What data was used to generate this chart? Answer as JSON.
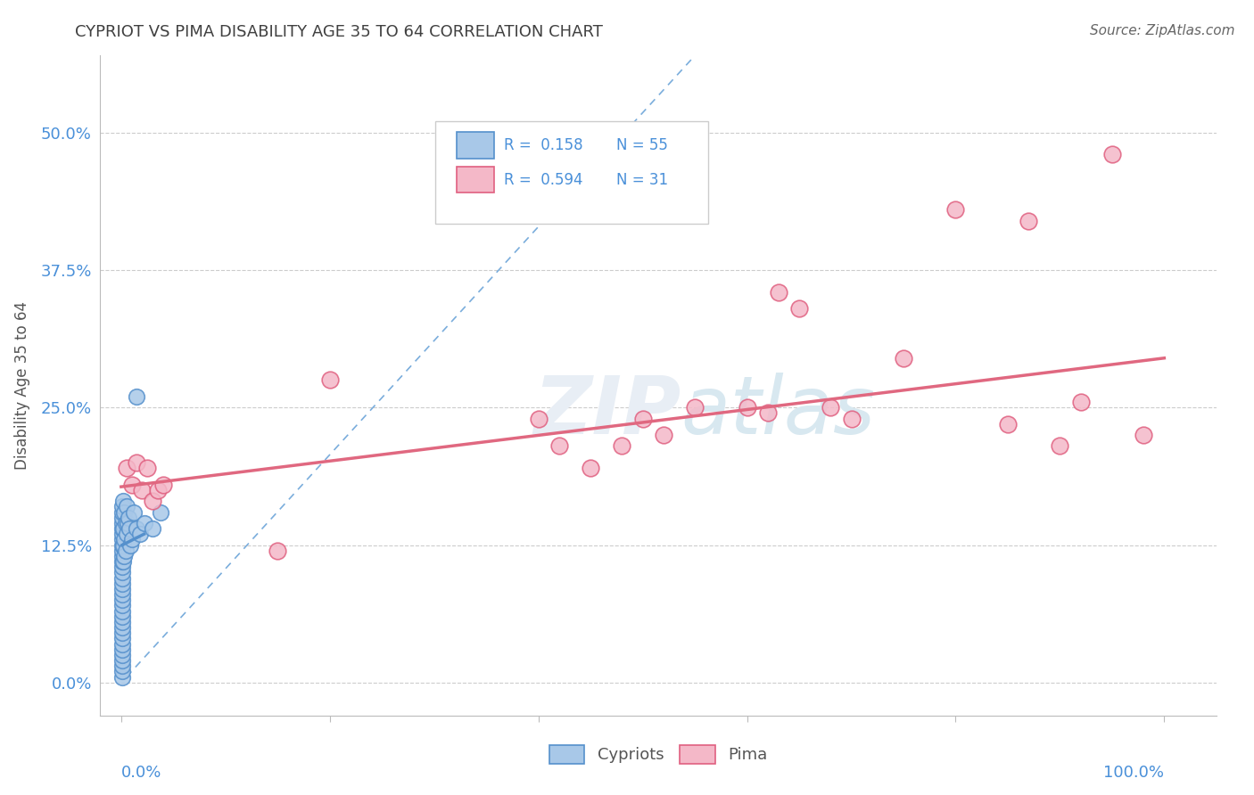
{
  "title": "CYPRIOT VS PIMA DISABILITY AGE 35 TO 64 CORRELATION CHART",
  "source": "Source: ZipAtlas.com",
  "ylabel": "Disability Age 35 to 64",
  "ytick_values": [
    0.0,
    0.125,
    0.25,
    0.375,
    0.5
  ],
  "ytick_labels": [
    "0.0%",
    "12.5%",
    "25.0%",
    "37.5%",
    "50.0%"
  ],
  "xlim": [
    -0.02,
    1.05
  ],
  "ylim": [
    -0.03,
    0.57
  ],
  "cypriot_R": 0.158,
  "cypriot_N": 55,
  "pima_R": 0.594,
  "pima_N": 31,
  "legend_labels": [
    "Cypriots",
    "Pima"
  ],
  "cypriot_color": "#a8c8e8",
  "pima_color": "#f4b8c8",
  "cypriot_edge_color": "#5590cc",
  "pima_edge_color": "#e06080",
  "cypriot_line_color": "#7aaddc",
  "pima_line_color": "#e06880",
  "grid_color": "#cccccc",
  "title_color": "#404040",
  "axis_label_color": "#4a90d9",
  "ylabel_color": "#555555",
  "watermark_color": "#e8eef5",
  "cypriot_x": [
    0.001,
    0.001,
    0.001,
    0.001,
    0.001,
    0.001,
    0.001,
    0.001,
    0.001,
    0.001,
    0.001,
    0.001,
    0.001,
    0.001,
    0.001,
    0.001,
    0.001,
    0.001,
    0.001,
    0.001,
    0.001,
    0.001,
    0.001,
    0.001,
    0.001,
    0.001,
    0.001,
    0.001,
    0.001,
    0.001,
    0.001,
    0.001,
    0.002,
    0.002,
    0.002,
    0.002,
    0.003,
    0.003,
    0.003,
    0.004,
    0.004,
    0.005,
    0.005,
    0.006,
    0.007,
    0.008,
    0.009,
    0.01,
    0.012,
    0.015,
    0.018,
    0.022,
    0.03,
    0.038,
    0.015
  ],
  "cypriot_y": [
    0.005,
    0.01,
    0.015,
    0.02,
    0.025,
    0.03,
    0.035,
    0.04,
    0.045,
    0.05,
    0.055,
    0.06,
    0.065,
    0.07,
    0.075,
    0.08,
    0.085,
    0.09,
    0.095,
    0.1,
    0.105,
    0.11,
    0.115,
    0.12,
    0.125,
    0.13,
    0.135,
    0.14,
    0.145,
    0.15,
    0.155,
    0.16,
    0.165,
    0.14,
    0.125,
    0.11,
    0.155,
    0.13,
    0.115,
    0.145,
    0.12,
    0.16,
    0.135,
    0.145,
    0.15,
    0.14,
    0.125,
    0.13,
    0.155,
    0.14,
    0.135,
    0.145,
    0.14,
    0.155,
    0.26
  ],
  "pima_x": [
    0.005,
    0.01,
    0.015,
    0.02,
    0.025,
    0.03,
    0.035,
    0.04,
    0.15,
    0.2,
    0.4,
    0.42,
    0.45,
    0.48,
    0.5,
    0.52,
    0.55,
    0.6,
    0.62,
    0.65,
    0.68,
    0.7,
    0.75,
    0.8,
    0.85,
    0.87,
    0.9,
    0.92,
    0.95,
    0.98,
    0.63
  ],
  "pima_y": [
    0.195,
    0.18,
    0.2,
    0.175,
    0.195,
    0.165,
    0.175,
    0.18,
    0.12,
    0.275,
    0.24,
    0.215,
    0.195,
    0.215,
    0.24,
    0.225,
    0.25,
    0.25,
    0.245,
    0.34,
    0.25,
    0.24,
    0.295,
    0.43,
    0.235,
    0.42,
    0.215,
    0.255,
    0.48,
    0.225,
    0.355
  ],
  "cyp_line_x0": 0.005,
  "cyp_line_y0": 0.005,
  "cyp_line_x1": 0.55,
  "cyp_line_y1": 0.57,
  "pima_line_x0": 0.0,
  "pima_line_y0": 0.178,
  "pima_line_x1": 1.0,
  "pima_line_y1": 0.295
}
